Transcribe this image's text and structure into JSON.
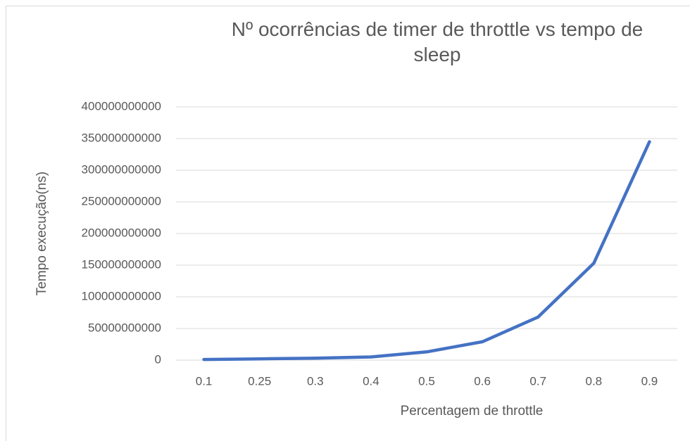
{
  "chart_data": {
    "type": "line",
    "title": "Nº ocorrências de timer de throttle vs tempo de sleep",
    "x_label": "Percentagem de throttle",
    "y_label": "Tempo execução(ns)",
    "categories": [
      "0.1",
      "0.25",
      "0.3",
      "0.4",
      "0.5",
      "0.6",
      "0.7",
      "0.8",
      "0.9"
    ],
    "series": [
      {
        "name": "Tempo execução(ns)",
        "color": "#4472c4",
        "values": [
          1000000000,
          2000000000,
          3000000000,
          5000000000,
          13000000000,
          29000000000,
          68000000000,
          153000000000,
          345000000000
        ]
      }
    ],
    "ylim": [
      0,
      400000000000
    ],
    "yticks": [
      0,
      50000000000,
      100000000000,
      150000000000,
      200000000000,
      250000000000,
      300000000000,
      350000000000,
      400000000000
    ],
    "grid": true,
    "legend": false
  }
}
